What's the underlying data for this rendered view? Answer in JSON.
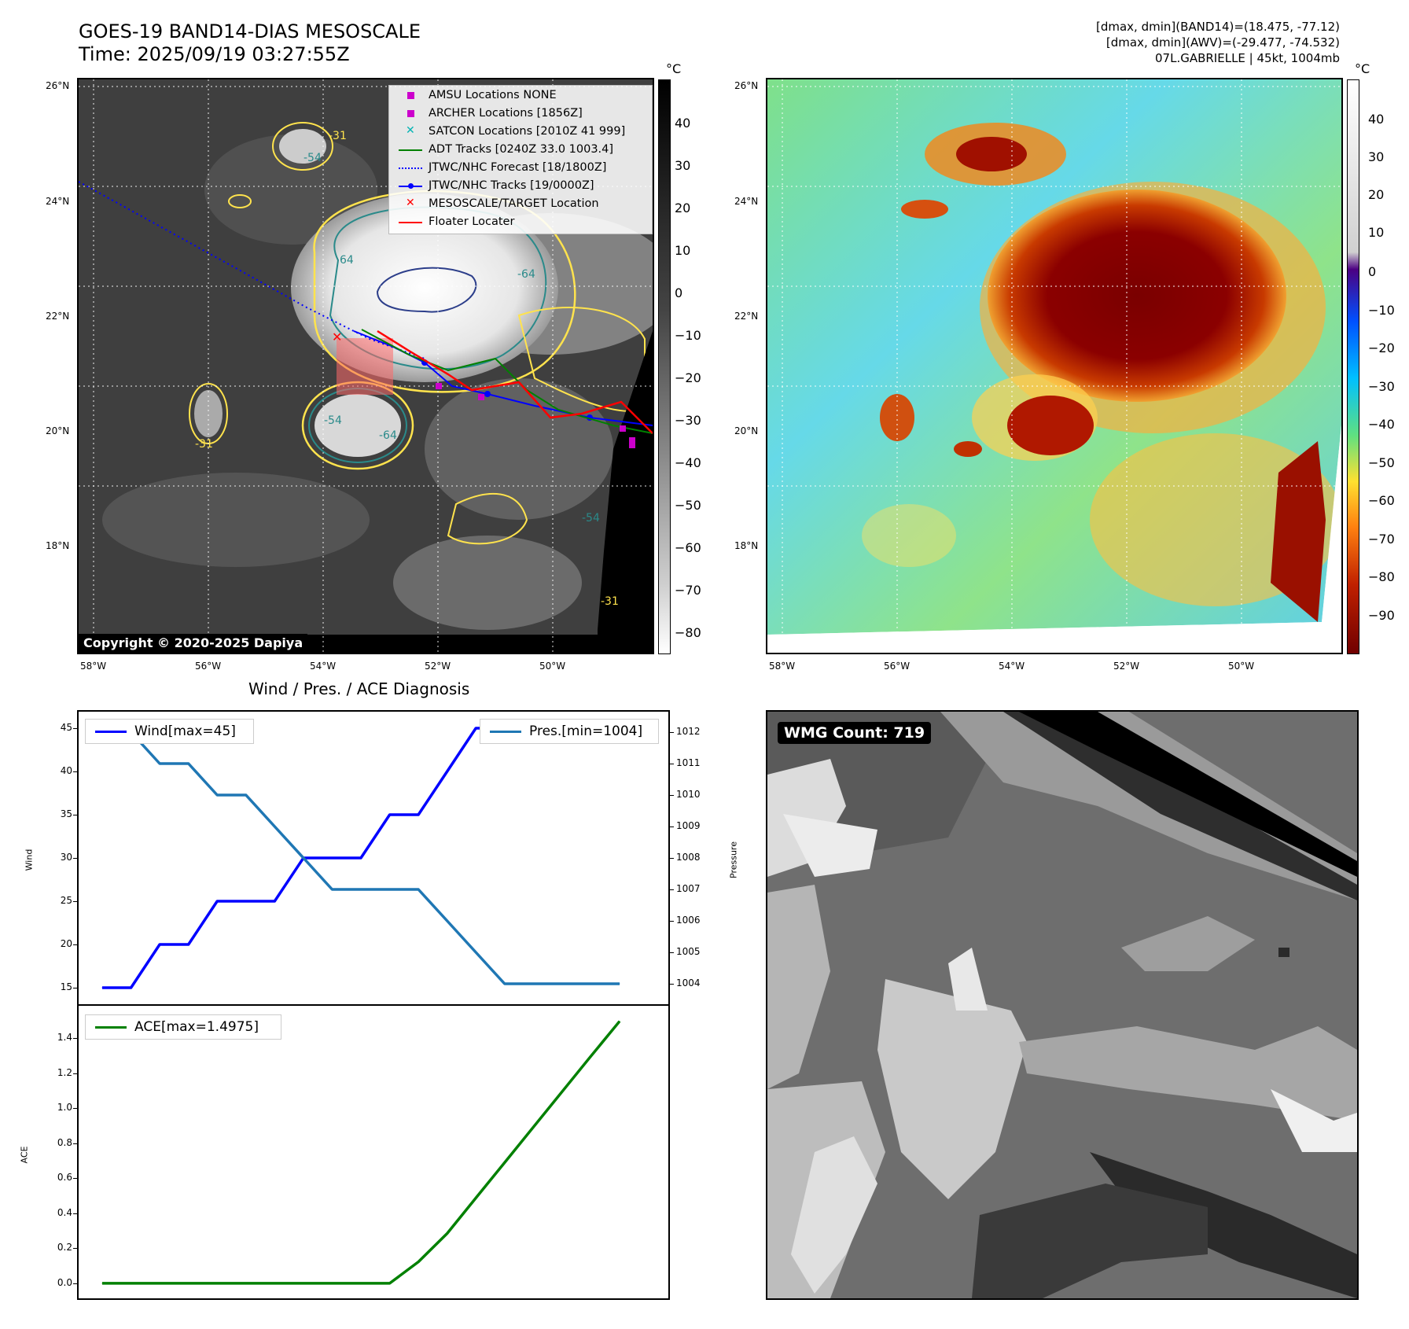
{
  "header": {
    "title_line1": "GOES-19 BAND14-DIAS MESOSCALE",
    "title_line2": "Time: 2025/09/19 03:27:55Z",
    "info_line1": "[dmax, dmin](BAND14)=(18.475, -77.12)",
    "info_line2": "[dmax, dmin](AWV)=(-29.477, -74.532)",
    "info_line3": "07L.GABRIELLE | 45kt, 1004mb"
  },
  "ir_map": {
    "lat_labels": [
      "26°N",
      "24°N",
      "22°N",
      "20°N",
      "18°N"
    ],
    "lon_labels": [
      "58°W",
      "56°W",
      "54°W",
      "52°W",
      "50°W"
    ],
    "contour_labels": [
      "-31",
      "-54",
      "64",
      "-64",
      "-54",
      "-31",
      "-64",
      "-54",
      "-31"
    ],
    "copyright": "Copyright © 2020-2025 Dapiya",
    "colorbar_unit": "°C",
    "colorbar_ticks": [
      "40",
      "30",
      "20",
      "10",
      "0",
      "−10",
      "−20",
      "−30",
      "−40",
      "−50",
      "−60",
      "−70",
      "−80"
    ],
    "legend": [
      {
        "label": "AMSU Locations NONE",
        "symbol": "square",
        "color": "#cc00cc"
      },
      {
        "label": "ARCHER Locations [1856Z]",
        "symbol": "square",
        "color": "#cc00cc"
      },
      {
        "label": "SATCON Locations [2010Z 41 999]",
        "symbol": "x",
        "color": "#00b3b3"
      },
      {
        "label": "ADT Tracks [0240Z 33.0 1003.4]",
        "symbol": "line",
        "color": "#008000"
      },
      {
        "label": "JTWC/NHC Forecast [18/1800Z]",
        "symbol": "dotted",
        "color": "#0000ff"
      },
      {
        "label": "JTWC/NHC Tracks [19/0000Z]",
        "symbol": "line-dot",
        "color": "#0000ff"
      },
      {
        "label": "MESOSCALE/TARGET Location",
        "symbol": "x",
        "color": "#ff0000"
      },
      {
        "label": "Floater Locater",
        "symbol": "line",
        "color": "#ff0000"
      }
    ]
  },
  "awv_map": {
    "lat_labels": [
      "26°N",
      "24°N",
      "22°N",
      "20°N",
      "18°N"
    ],
    "lon_labels": [
      "58°W",
      "56°W",
      "54°W",
      "52°W",
      "50°W"
    ],
    "colorbar_unit": "°C",
    "colorbar_ticks": [
      "40",
      "30",
      "20",
      "10",
      "0",
      "−10",
      "−20",
      "−30",
      "−40",
      "−50",
      "−60",
      "−70",
      "−80",
      "−90"
    ]
  },
  "diagnosis": {
    "title": "Wind / Pres. / ACE Diagnosis",
    "wind_legend": "Wind[max=45]",
    "pres_legend": "Pres.[min=1004]",
    "ace_legend": "ACE[max=1.4975]",
    "wind_ylabel": "Wind",
    "pres_ylabel": "Pressure",
    "ace_ylabel": "ACE"
  },
  "wmg": {
    "label": "WMG Count: 719"
  },
  "chart_data": [
    {
      "type": "line",
      "title": "Wind / Pres. / ACE Diagnosis",
      "ylabel": "Wind",
      "ylim": [
        14,
        46
      ],
      "series": [
        {
          "name": "Wind[max=45]",
          "color": "#0000ff",
          "values": [
            15,
            15,
            20,
            20,
            25,
            25,
            25,
            30,
            30,
            30,
            35,
            35,
            40,
            45,
            45,
            45,
            45,
            45,
            45
          ]
        }
      ]
    },
    {
      "type": "line",
      "ylabel": "Pressure",
      "ylim": [
        1003.6,
        1012.4
      ],
      "series": [
        {
          "name": "Pres.[min=1004]",
          "color": "#1f77b4",
          "values": [
            1012,
            1012,
            1011,
            1011,
            1010,
            1010,
            1009,
            1008,
            1007,
            1007,
            1007,
            1007,
            1006,
            1005,
            1004,
            1004,
            1004,
            1004,
            1004
          ]
        }
      ]
    },
    {
      "type": "line",
      "ylabel": "ACE",
      "ylim": [
        -0.05,
        1.55
      ],
      "series": [
        {
          "name": "ACE[max=1.4975]",
          "color": "#008000",
          "values": [
            0,
            0,
            0,
            0,
            0,
            0,
            0,
            0,
            0,
            0,
            0,
            0.1225,
            0.285,
            0.4875,
            0.69,
            0.8925,
            1.095,
            1.2975,
            1.4975
          ]
        }
      ]
    }
  ]
}
